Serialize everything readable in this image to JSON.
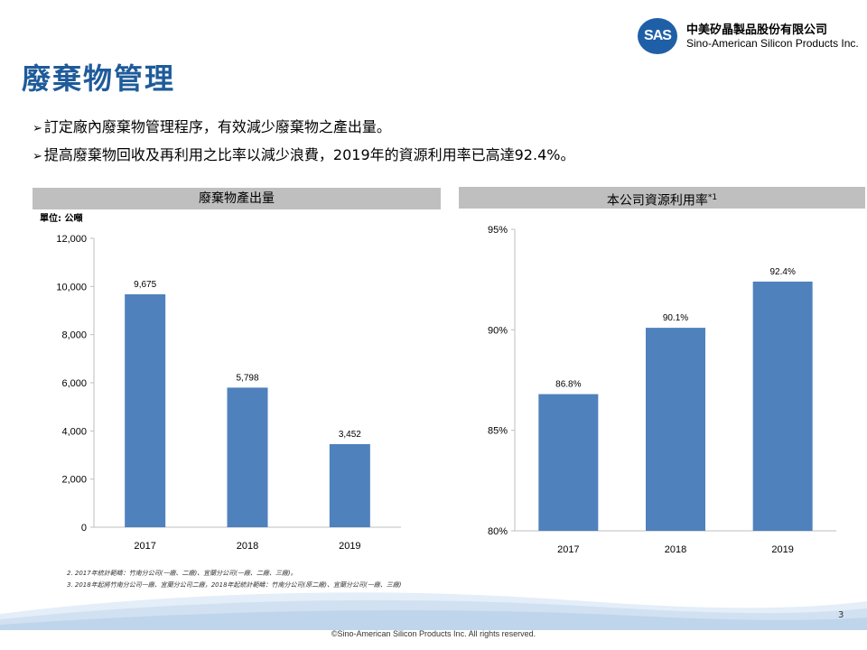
{
  "logo": {
    "mark": "SAS",
    "name_zh": "中美矽晶製品股份有限公司",
    "name_en": "Sino-American Silicon Products Inc."
  },
  "title": "廢棄物管理",
  "bullets": [
    "訂定廠內廢棄物管理程序，有效減少廢棄物之產出量。",
    "提高廢棄物回收及再利用之比率以減少浪費，2019年的資源利用率已高達92.4%。"
  ],
  "bullet_icon": "arrow-right-icon",
  "left_panel": {
    "header": "廢棄物產出量",
    "unit": "單位: 公噸"
  },
  "right_panel": {
    "header": "本公司資源利用率",
    "header_sup": "*1"
  },
  "chart_data": [
    {
      "type": "bar",
      "title": "廢棄物產出量",
      "ylabel": "單位: 公噸",
      "categories": [
        "2017",
        "2018",
        "2019"
      ],
      "values": [
        9675,
        5798,
        3452
      ],
      "value_labels": [
        "9,675",
        "5,798",
        "3,452"
      ],
      "yticks": [
        "0",
        "2,000",
        "4,000",
        "6,000",
        "8,000",
        "10,000",
        "12,000"
      ],
      "ylim": [
        0,
        12000
      ],
      "color": "#4f81bd",
      "grid": false
    },
    {
      "type": "bar",
      "title": "本公司資源利用率*1",
      "categories": [
        "2017",
        "2018",
        "2019"
      ],
      "values": [
        86.8,
        90.1,
        92.4
      ],
      "value_labels": [
        "86.8%",
        "90.1%",
        "92.4%"
      ],
      "yticks": [
        "80%",
        "85%",
        "90%",
        "95%"
      ],
      "ylim": [
        80,
        95
      ],
      "color": "#4f81bd",
      "grid": false
    }
  ],
  "notes": [
    "2. 2017年統計範疇：竹南分公司(一廠、二廠)、宜蘭分公司(一廠、二廠、三廠)。",
    "3. 2018年起將竹南分公司一廠、宜蘭分公司二廠，2018年起統計範疇：竹南分公司(原二廠)、宜蘭分公司(一廠、三廠)"
  ],
  "page_number": "3",
  "copyright": "©Sino-American Silicon Products Inc.  All rights reserved.",
  "colors": {
    "title": "#1f5b9a",
    "bar": "#4f81bd",
    "header_bg": "#bfbfbf",
    "logo": "#1f5fa8"
  }
}
